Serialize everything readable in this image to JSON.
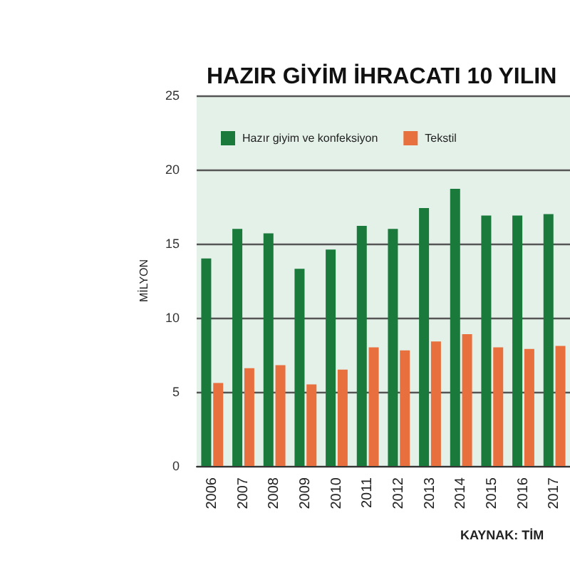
{
  "chart_data": {
    "type": "bar",
    "title": "HAZIR GİYİM İHRACATI 10 YILIN",
    "ylabel": "MİLYON",
    "categories": [
      "2006",
      "2007",
      "2008",
      "2009",
      "2010",
      "2011",
      "2012",
      "2013",
      "2014",
      "2015",
      "2016",
      "2017"
    ],
    "series": [
      {
        "name": "Hazır giyim ve konfeksiyon",
        "color": "#1a7a3c",
        "values": [
          14.0,
          16.0,
          15.7,
          13.3,
          14.6,
          16.2,
          16.0,
          17.4,
          18.7,
          16.9,
          16.9,
          17.0
        ]
      },
      {
        "name": "Tekstil",
        "color": "#e8703f",
        "values": [
          5.6,
          6.6,
          6.8,
          5.5,
          6.5,
          8.0,
          7.8,
          8.4,
          8.9,
          8.0,
          7.9,
          8.1
        ]
      }
    ],
    "ylim": [
      0,
      25
    ],
    "yticks": [
      0,
      5,
      10,
      15,
      20,
      25
    ],
    "grid": "y",
    "legend": "top left",
    "annotations": [
      "KAYNAK: TİM"
    ]
  }
}
